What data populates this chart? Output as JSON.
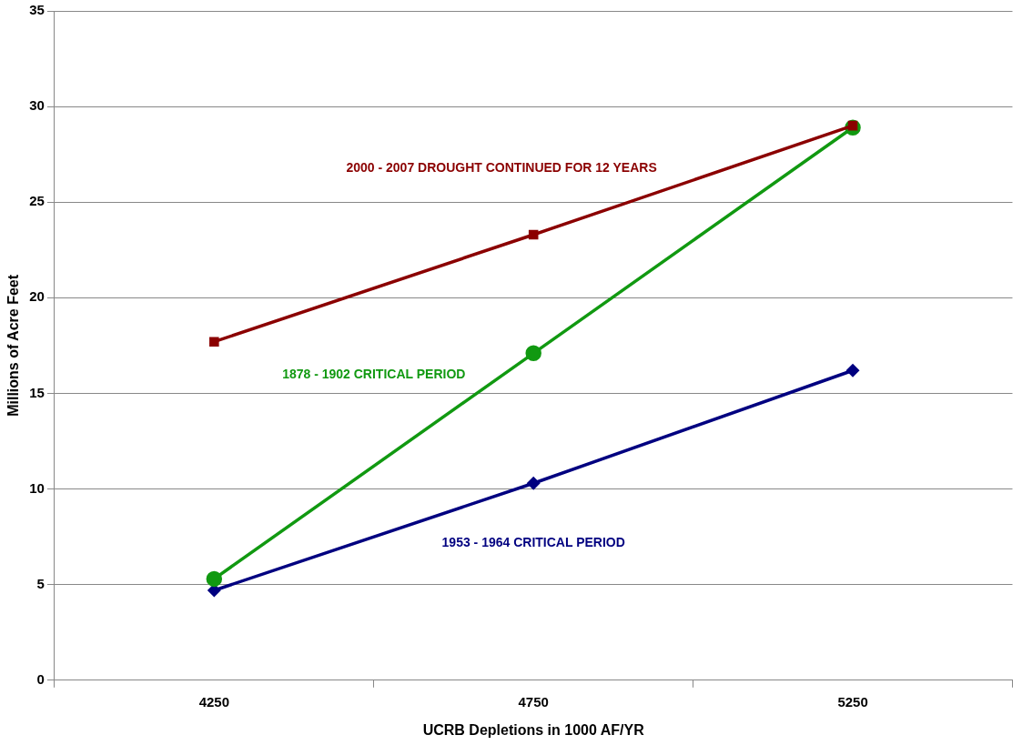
{
  "chart_data": {
    "type": "line",
    "xlabel": "UCRB Depletions in 1000 AF/YR",
    "ylabel": "Millions of Acre Feet",
    "categories": [
      "4250",
      "4750",
      "5250"
    ],
    "series": [
      {
        "name": "2000 - 2007 DROUGHT CONTINUED FOR 12 YEARS",
        "color": "#8b0000",
        "marker": "square",
        "values": [
          17.7,
          23.3,
          29.0
        ]
      },
      {
        "name": "1878 - 1902 CRITICAL PERIOD",
        "color": "#119911",
        "marker": "circle",
        "values": [
          5.3,
          17.1,
          28.9
        ]
      },
      {
        "name": "1953 - 1964 CRITICAL PERIOD",
        "color": "#000080",
        "marker": "diamond",
        "values": [
          4.7,
          10.3,
          16.2
        ]
      }
    ],
    "ylim": [
      0,
      35
    ],
    "yticks": [
      0,
      5,
      10,
      15,
      20,
      25,
      30,
      35
    ],
    "grid": "y",
    "legend": false
  }
}
